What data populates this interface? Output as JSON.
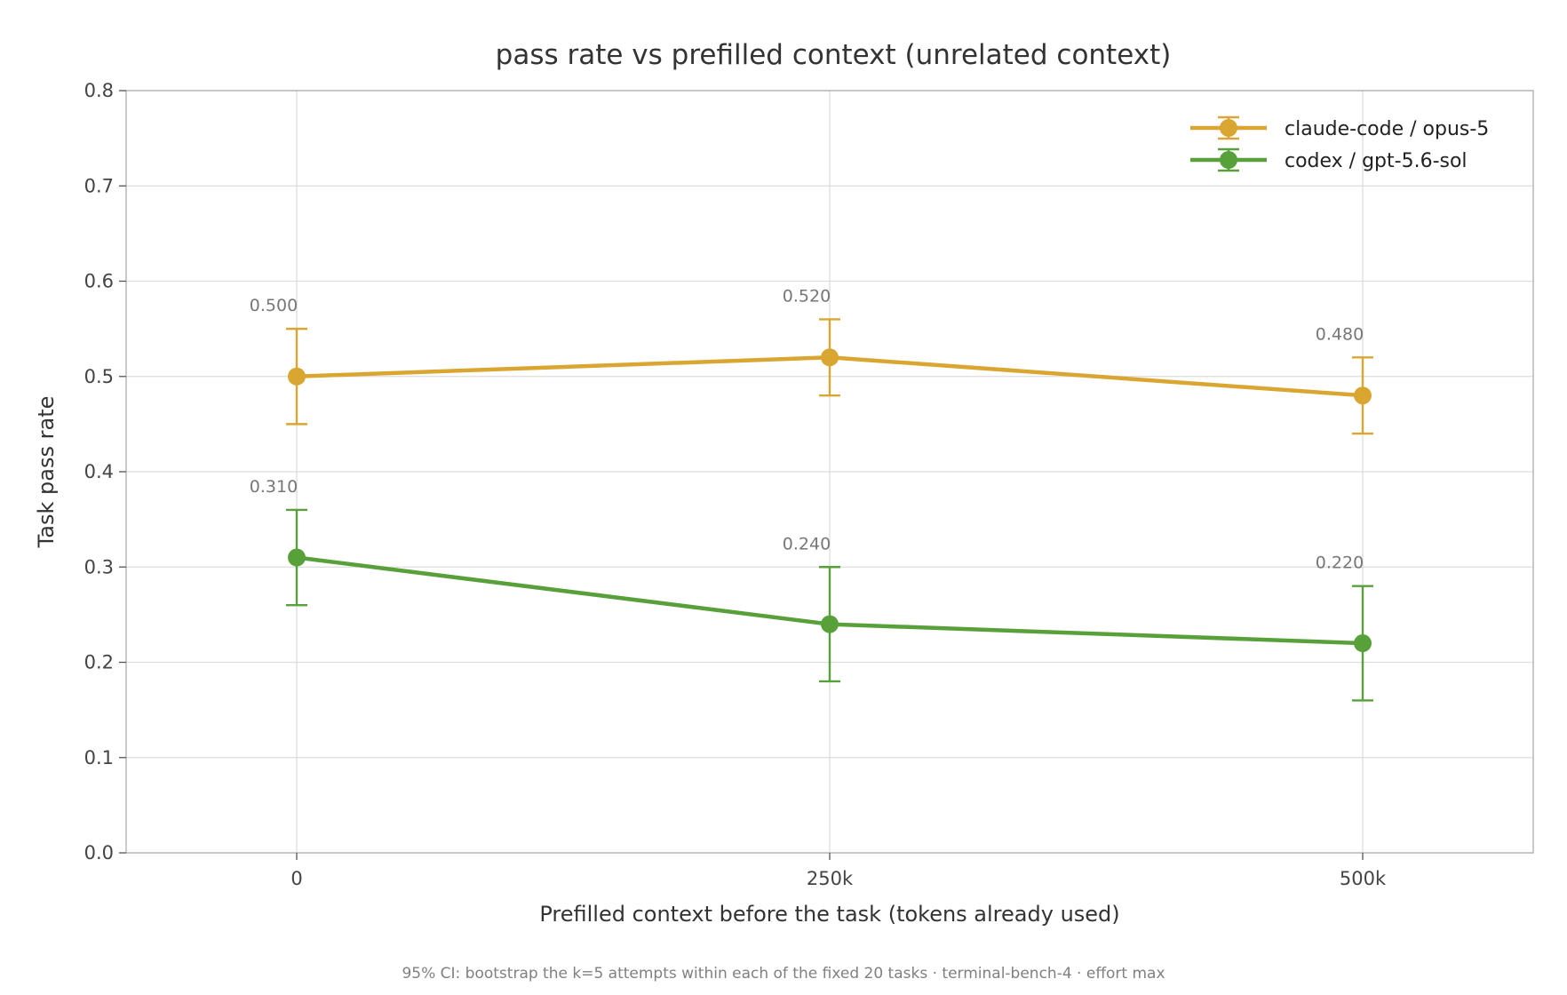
{
  "chart_data": {
    "type": "line",
    "title": "pass rate vs prefilled context (unrelated context)",
    "xlabel": "Prefilled context before the task (tokens already used)",
    "ylabel": "Task pass rate",
    "footnote": "95% CI: bootstrap the k=5 attempts within each of the fixed 20 tasks · terminal-bench-4 · effort max",
    "categories": [
      "0",
      "250k",
      "500k"
    ],
    "x": [
      0,
      250000,
      500000
    ],
    "ylim": [
      0.0,
      0.8
    ],
    "yticks": [
      "0.0",
      "0.1",
      "0.2",
      "0.3",
      "0.4",
      "0.5",
      "0.6",
      "0.7",
      "0.8"
    ],
    "grid": true,
    "legend": "top-right",
    "error_bars": "95% CI",
    "series": [
      {
        "name": "claude-code / opus-5",
        "color": "#DAA632",
        "values": [
          0.5,
          0.52,
          0.48
        ],
        "value_labels": [
          "0.500",
          "0.520",
          "0.480"
        ],
        "ci_low": [
          0.45,
          0.48,
          0.44
        ],
        "ci_high": [
          0.55,
          0.56,
          0.52
        ]
      },
      {
        "name": "codex / gpt-5.6-sol",
        "color": "#58A03A",
        "values": [
          0.31,
          0.24,
          0.22
        ],
        "value_labels": [
          "0.310",
          "0.240",
          "0.220"
        ],
        "ci_low": [
          0.26,
          0.18,
          0.16
        ],
        "ci_high": [
          0.36,
          0.3,
          0.28
        ]
      }
    ]
  }
}
